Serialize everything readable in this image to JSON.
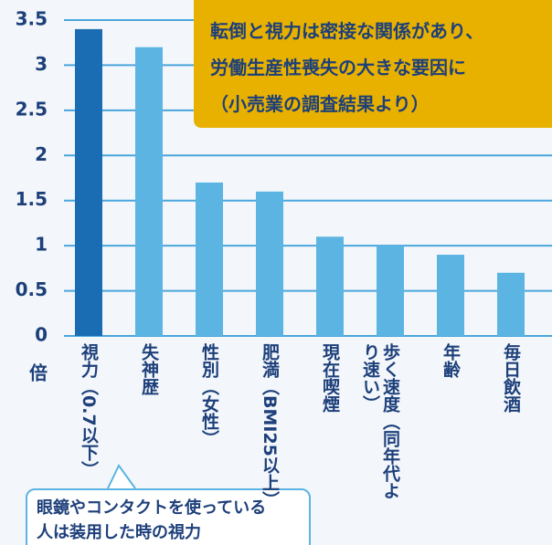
{
  "chart_data": {
    "type": "bar",
    "categories": [
      "視力（0.7以下）",
      "失神歴",
      "性別（女性）",
      "肥満（BMI25以上）",
      "現在喫煙",
      "歩く速度（同年代より速い）",
      "年齢",
      "毎日飲酒"
    ],
    "values": [
      3.4,
      3.2,
      1.7,
      1.6,
      1.1,
      1.0,
      0.9,
      0.7
    ],
    "colors": [
      "#1b6db3",
      "#5cb4e2",
      "#5cb4e2",
      "#5cb4e2",
      "#5cb4e2",
      "#5cb4e2",
      "#5cb4e2",
      "#5cb4e2"
    ],
    "ylim": [
      0,
      3.5
    ],
    "yticks": [
      0,
      0.5,
      1,
      1.5,
      2,
      2.5,
      3,
      3.5
    ],
    "grid": true,
    "y_unit": "倍",
    "annotation": [
      "転倒と視力は密接な関係があり、",
      "労働生産性喪失の大きな要因に",
      "（小売業の調査結果より）"
    ],
    "callout": [
      "眼鏡やコンタクトを使っている",
      "人は装用した時の視力"
    ]
  }
}
